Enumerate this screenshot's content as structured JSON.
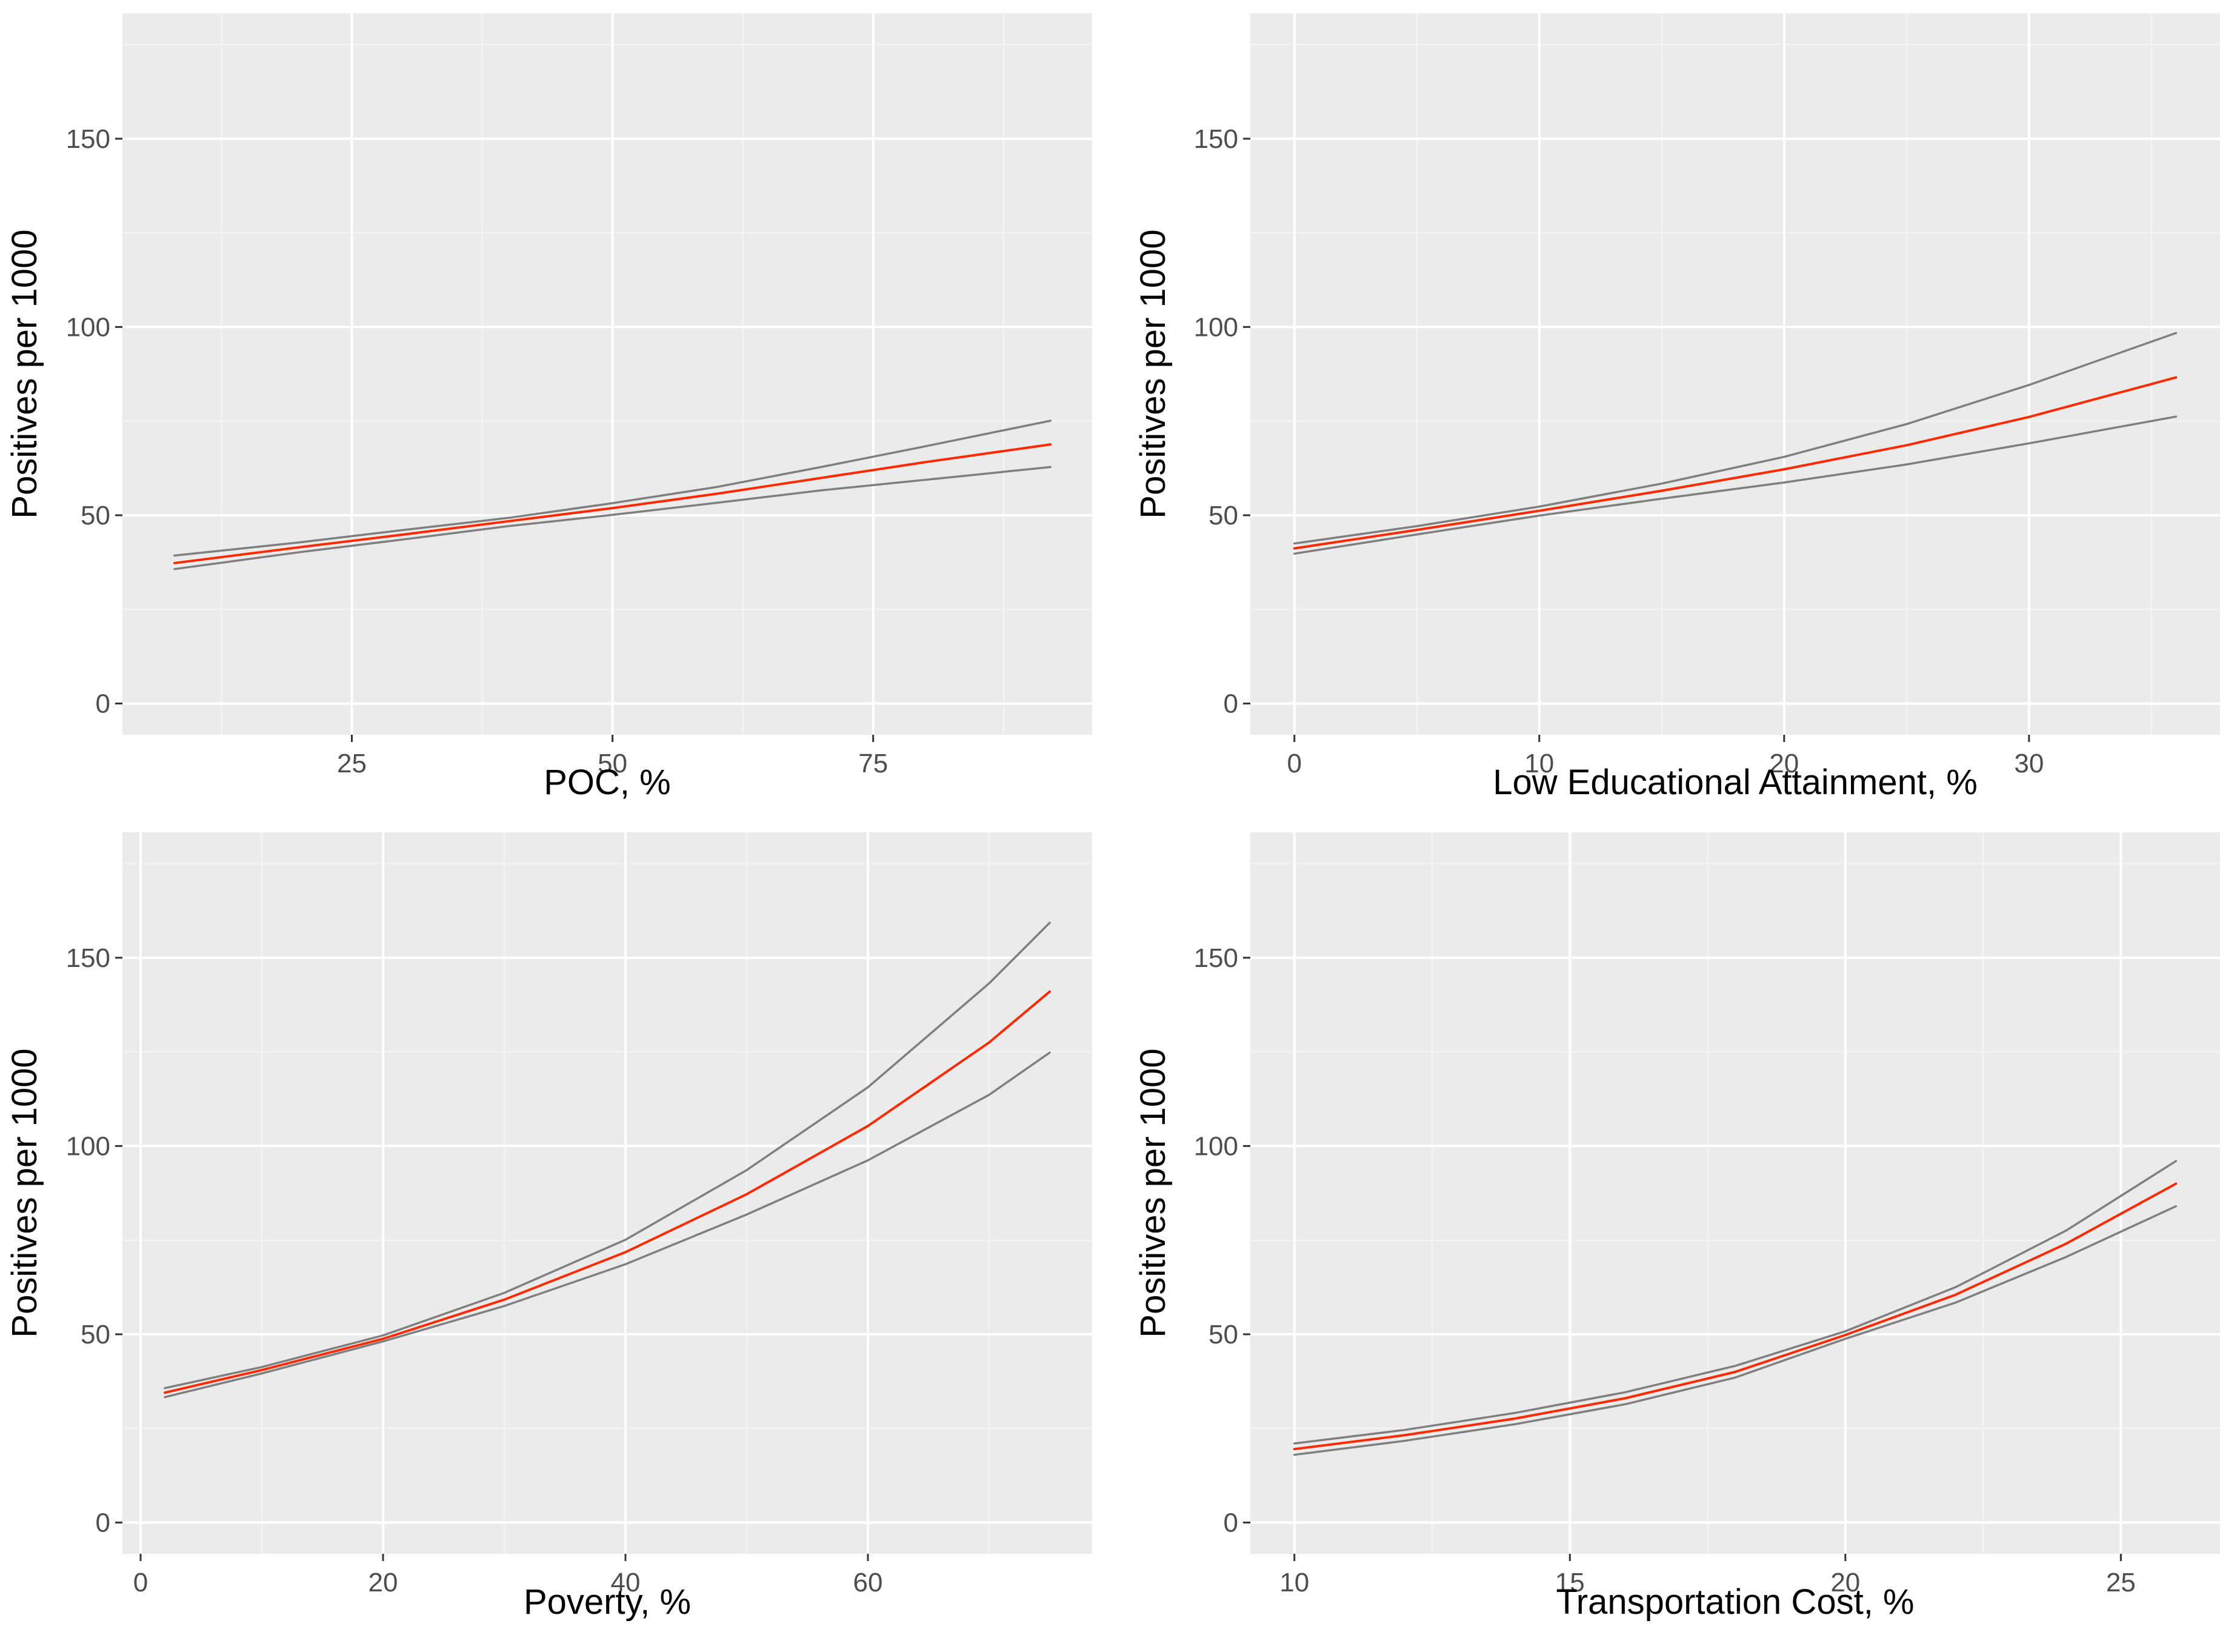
{
  "colors": {
    "panel_background": "#ebebeb",
    "major_grid": "#ffffff",
    "minor_grid": "#f5f5f5",
    "fit_line": "#ff2a00",
    "ci_line": "#7f7f7f"
  },
  "chart_data": [
    {
      "type": "line",
      "xlabel": "POC, %",
      "ylabel": "Positives per 1000",
      "xlim": [
        3,
        96
      ],
      "ylim": [
        -8.3,
        183.3
      ],
      "xticks": [
        25,
        50,
        75
      ],
      "xtick_labels": [
        "25",
        "50",
        "75"
      ],
      "yticks": [
        0,
        50,
        100,
        150
      ],
      "ytick_labels": [
        "0",
        "50",
        "100",
        "150"
      ],
      "series": [
        {
          "name": "estimate",
          "role": "fit",
          "x": [
            8,
            20,
            30,
            40,
            50,
            60,
            70,
            80,
            92
          ],
          "y": [
            37.3,
            41.5,
            44.9,
            48.4,
            51.9,
            55.7,
            59.9,
            64.1,
            68.8
          ]
        },
        {
          "name": "upper bound",
          "role": "ci",
          "x": [
            8,
            20,
            30,
            40,
            50,
            60,
            70,
            80,
            92
          ],
          "y": [
            39.3,
            42.8,
            46.1,
            49.3,
            53.2,
            57.5,
            62.8,
            68.3,
            75.1
          ]
        },
        {
          "name": "lower bound",
          "role": "ci",
          "x": [
            8,
            20,
            30,
            40,
            50,
            60,
            70,
            80,
            92
          ],
          "y": [
            35.7,
            40.2,
            43.6,
            47.1,
            50.1,
            53.3,
            56.6,
            59.4,
            62.8
          ]
        }
      ]
    },
    {
      "type": "line",
      "xlabel": "Low Educational Attainment, %",
      "ylabel": "Positives per 1000",
      "xlim": [
        -1.8,
        37.8
      ],
      "ylim": [
        -8.3,
        183.3
      ],
      "xticks": [
        0,
        10,
        20,
        30
      ],
      "xtick_labels": [
        "0",
        "10",
        "20",
        "30"
      ],
      "yticks": [
        0,
        50,
        100,
        150
      ],
      "ytick_labels": [
        "0",
        "50",
        "100",
        "150"
      ],
      "series": [
        {
          "name": "estimate",
          "role": "fit",
          "x": [
            0,
            5,
            10,
            15,
            20,
            25,
            30,
            36
          ],
          "y": [
            41.2,
            46.1,
            51.2,
            56.5,
            62.2,
            68.6,
            76.1,
            86.6
          ]
        },
        {
          "name": "upper bound",
          "role": "ci",
          "x": [
            0,
            5,
            10,
            15,
            20,
            25,
            30,
            36
          ],
          "y": [
            42.5,
            47.1,
            52.3,
            58.4,
            65.5,
            74.2,
            84.6,
            98.4
          ]
        },
        {
          "name": "lower bound",
          "role": "ci",
          "x": [
            0,
            5,
            10,
            15,
            20,
            25,
            30,
            36
          ],
          "y": [
            39.8,
            44.9,
            49.9,
            54.4,
            58.7,
            63.5,
            69.1,
            76.2
          ]
        }
      ]
    },
    {
      "type": "line",
      "xlabel": "Poverty, %",
      "ylabel": "Positives per 1000",
      "xlim": [
        -1.5,
        78.5
      ],
      "ylim": [
        -8.3,
        183.3
      ],
      "xticks": [
        0,
        20,
        40,
        60
      ],
      "xtick_labels": [
        "0",
        "20",
        "40",
        "60"
      ],
      "yticks": [
        0,
        50,
        100,
        150
      ],
      "ytick_labels": [
        "0",
        "50",
        "100",
        "150"
      ],
      "series": [
        {
          "name": "estimate",
          "role": "fit",
          "x": [
            2,
            10,
            20,
            30,
            40,
            50,
            60,
            70,
            75
          ],
          "y": [
            34.5,
            40.5,
            48.8,
            59.2,
            71.8,
            87.2,
            105.3,
            127.5,
            141.0
          ]
        },
        {
          "name": "upper bound",
          "role": "ci",
          "x": [
            2,
            10,
            20,
            30,
            40,
            50,
            60,
            70,
            75
          ],
          "y": [
            35.7,
            41.3,
            49.7,
            61.0,
            75.1,
            93.6,
            115.6,
            143.2,
            159.3
          ]
        },
        {
          "name": "lower bound",
          "role": "ci",
          "x": [
            2,
            10,
            20,
            30,
            40,
            50,
            60,
            70,
            75
          ],
          "y": [
            33.3,
            39.6,
            48.1,
            57.5,
            68.6,
            81.8,
            96.2,
            113.6,
            124.8
          ]
        }
      ]
    },
    {
      "type": "line",
      "xlabel": "Transportation Cost, %",
      "ylabel": "Positives per 1000",
      "xlim": [
        9.2,
        26.8
      ],
      "ylim": [
        -8.3,
        183.3
      ],
      "xticks": [
        10,
        15,
        20,
        25
      ],
      "xtick_labels": [
        "10",
        "15",
        "20",
        "25"
      ],
      "yticks": [
        0,
        50,
        100,
        150
      ],
      "ytick_labels": [
        "0",
        "50",
        "100",
        "150"
      ],
      "series": [
        {
          "name": "estimate",
          "role": "fit",
          "x": [
            10,
            12,
            14,
            16,
            18,
            20,
            22,
            24,
            26
          ],
          "y": [
            19.5,
            23.2,
            27.6,
            33.0,
            40.0,
            49.8,
            60.5,
            74.0,
            90.0
          ]
        },
        {
          "name": "upper bound",
          "role": "ci",
          "x": [
            10,
            12,
            14,
            16,
            18,
            20,
            22,
            24,
            26
          ],
          "y": [
            21.0,
            24.6,
            29.1,
            34.6,
            41.6,
            50.8,
            62.5,
            77.5,
            96.0
          ]
        },
        {
          "name": "lower bound",
          "role": "ci",
          "x": [
            10,
            12,
            14,
            16,
            18,
            20,
            22,
            24,
            26
          ],
          "y": [
            18.0,
            21.7,
            26.1,
            31.4,
            38.5,
            48.8,
            58.4,
            70.5,
            84.0
          ]
        }
      ]
    }
  ]
}
